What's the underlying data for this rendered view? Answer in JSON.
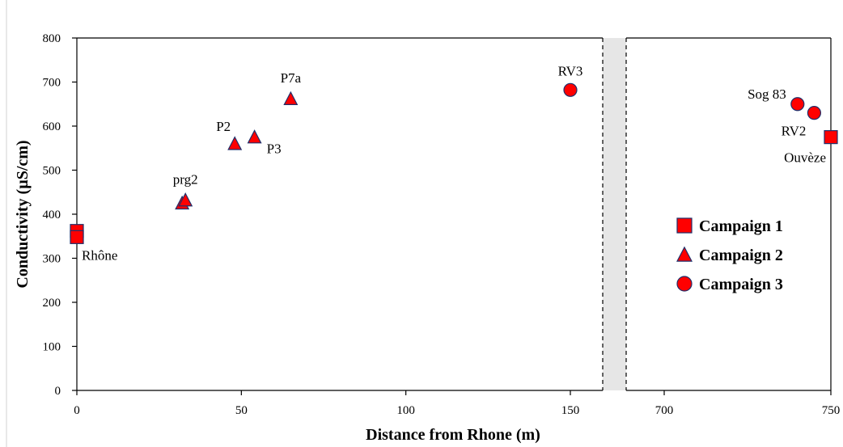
{
  "chart_data": {
    "type": "scatter",
    "xlabel": "Distance from Rhone (m)",
    "ylabel": "Conductivity (µS/cm)",
    "ylim": [
      0,
      800
    ],
    "y_ticks": [
      "0",
      "100",
      "200",
      "300",
      "400",
      "500",
      "600",
      "700",
      "800"
    ],
    "x_axis_break": true,
    "x_segments": [
      {
        "xlim": [
          0,
          150
        ],
        "ticks": [
          0,
          50,
          100,
          150
        ],
        "tick_labels": [
          "0",
          "50",
          "100",
          "150"
        ]
      },
      {
        "xlim": [
          700,
          750
        ],
        "ticks": [
          700,
          750
        ],
        "tick_labels": [
          "700",
          "750"
        ]
      }
    ],
    "grid": false,
    "legend_position": "right",
    "colors": {
      "marker_fill": "#ff0000",
      "marker_stroke": "#1f2f6b",
      "break_fill": "#e6e6e6"
    },
    "series": [
      {
        "name": "Campaign 1",
        "marker": "square",
        "points": [
          {
            "x": 0,
            "y": 362,
            "label": ""
          },
          {
            "x": 0,
            "y": 348,
            "label": "Rhône"
          },
          {
            "x": 750,
            "y": 575,
            "label": "Ouvèze"
          }
        ]
      },
      {
        "name": "Campaign 2",
        "marker": "triangle",
        "points": [
          {
            "x": 32,
            "y": 425,
            "label": ""
          },
          {
            "x": 33,
            "y": 432,
            "label": "prg2"
          },
          {
            "x": 48,
            "y": 560,
            "label": "P2"
          },
          {
            "x": 54,
            "y": 575,
            "label": "P3"
          },
          {
            "x": 65,
            "y": 662,
            "label": "P7a"
          }
        ]
      },
      {
        "name": "Campaign 3",
        "marker": "circle",
        "points": [
          {
            "x": 150,
            "y": 682,
            "label": "RV3"
          },
          {
            "x": 740,
            "y": 650,
            "label": "Sog 83"
          },
          {
            "x": 745,
            "y": 630,
            "label": "RV2"
          }
        ]
      }
    ]
  }
}
